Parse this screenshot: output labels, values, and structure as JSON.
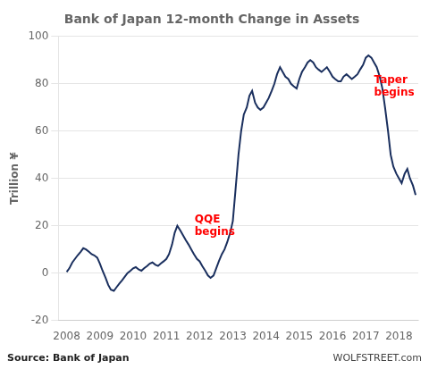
{
  "chart_data": {
    "type": "line",
    "title": "Bank of Japan 12-month Change in Assets",
    "y_label": "Trillion ¥",
    "source": "Source: Bank of Japan",
    "watermark": "WOLFSTREET.com",
    "color": "#1a2f5e",
    "grid": "y",
    "x": [
      2008.0,
      2008.08,
      2008.17,
      2008.25,
      2008.33,
      2008.42,
      2008.5,
      2008.58,
      2008.67,
      2008.75,
      2008.83,
      2008.92,
      2009.0,
      2009.08,
      2009.17,
      2009.25,
      2009.33,
      2009.42,
      2009.5,
      2009.58,
      2009.67,
      2009.75,
      2009.83,
      2009.92,
      2010.0,
      2010.08,
      2010.17,
      2010.25,
      2010.33,
      2010.42,
      2010.5,
      2010.58,
      2010.67,
      2010.75,
      2010.83,
      2010.92,
      2011.0,
      2011.08,
      2011.17,
      2011.25,
      2011.33,
      2011.42,
      2011.5,
      2011.58,
      2011.67,
      2011.75,
      2011.83,
      2011.92,
      2012.0,
      2012.08,
      2012.17,
      2012.25,
      2012.33,
      2012.42,
      2012.5,
      2012.58,
      2012.67,
      2012.75,
      2012.83,
      2012.92,
      2013.0,
      2013.08,
      2013.17,
      2013.25,
      2013.33,
      2013.42,
      2013.5,
      2013.58,
      2013.67,
      2013.75,
      2013.83,
      2013.92,
      2014.0,
      2014.08,
      2014.17,
      2014.25,
      2014.33,
      2014.42,
      2014.5,
      2014.58,
      2014.67,
      2014.75,
      2014.83,
      2014.92,
      2015.0,
      2015.08,
      2015.17,
      2015.25,
      2015.33,
      2015.42,
      2015.5,
      2015.58,
      2015.67,
      2015.75,
      2015.83,
      2015.92,
      2016.0,
      2016.08,
      2016.17,
      2016.25,
      2016.33,
      2016.42,
      2016.5,
      2016.58,
      2016.67,
      2016.75,
      2016.83,
      2016.92,
      2017.0,
      2017.08,
      2017.17,
      2017.25,
      2017.33,
      2017.42,
      2017.5,
      2017.58,
      2017.67,
      2017.75,
      2017.83,
      2017.92,
      2018.0,
      2018.08,
      2018.17,
      2018.25,
      2018.33,
      2018.42,
      2018.5
    ],
    "values": [
      0.5,
      2.0,
      4.5,
      6.0,
      7.5,
      9.0,
      10.5,
      10.0,
      9.0,
      8.0,
      7.5,
      6.5,
      4.0,
      1.0,
      -2.0,
      -5.0,
      -7.0,
      -7.5,
      -6.0,
      -4.5,
      -3.0,
      -1.5,
      0.0,
      1.0,
      2.0,
      2.5,
      1.5,
      1.0,
      2.0,
      3.0,
      4.0,
      4.5,
      3.5,
      3.0,
      4.0,
      5.0,
      6.0,
      8.0,
      12.0,
      17.0,
      20.0,
      18.0,
      16.0,
      14.0,
      12.0,
      10.0,
      8.0,
      6.0,
      5.0,
      3.0,
      1.0,
      -1.0,
      -2.0,
      -1.0,
      2.0,
      5.0,
      8.0,
      10.0,
      13.0,
      17.0,
      22.0,
      35.0,
      50.0,
      60.0,
      67.0,
      70.0,
      75.0,
      77.0,
      72.0,
      70.0,
      69.0,
      70.0,
      72.0,
      74.0,
      77.0,
      80.0,
      84.0,
      87.0,
      85.0,
      83.0,
      82.0,
      80.0,
      79.0,
      78.0,
      82.0,
      85.0,
      87.0,
      89.0,
      90.0,
      89.0,
      87.0,
      86.0,
      85.0,
      86.0,
      87.0,
      85.0,
      83.0,
      82.0,
      81.0,
      81.0,
      83.0,
      84.0,
      83.0,
      82.0,
      83.0,
      84.0,
      86.0,
      88.0,
      91.0,
      92.0,
      91.0,
      89.0,
      87.0,
      83.0,
      78.0,
      70.0,
      60.0,
      50.0,
      45.0,
      42.0,
      40.0,
      38.0,
      42.0,
      44.0,
      40.0,
      37.0,
      33.0
    ],
    "xlim": [
      2007.75,
      2018.58
    ],
    "xticks": [
      2008,
      2009,
      2010,
      2011,
      2012,
      2013,
      2014,
      2015,
      2016,
      2017,
      2018
    ],
    "ylim": [
      -20,
      100
    ],
    "yticks": [
      -20,
      0,
      20,
      40,
      60,
      80,
      100
    ],
    "annotations": [
      {
        "text": "QQE\nbegins",
        "x": 2011.85,
        "y": 20,
        "color": "red"
      },
      {
        "text": "Taper\nbegins",
        "x": 2017.25,
        "y": 79,
        "color": "red"
      }
    ]
  }
}
